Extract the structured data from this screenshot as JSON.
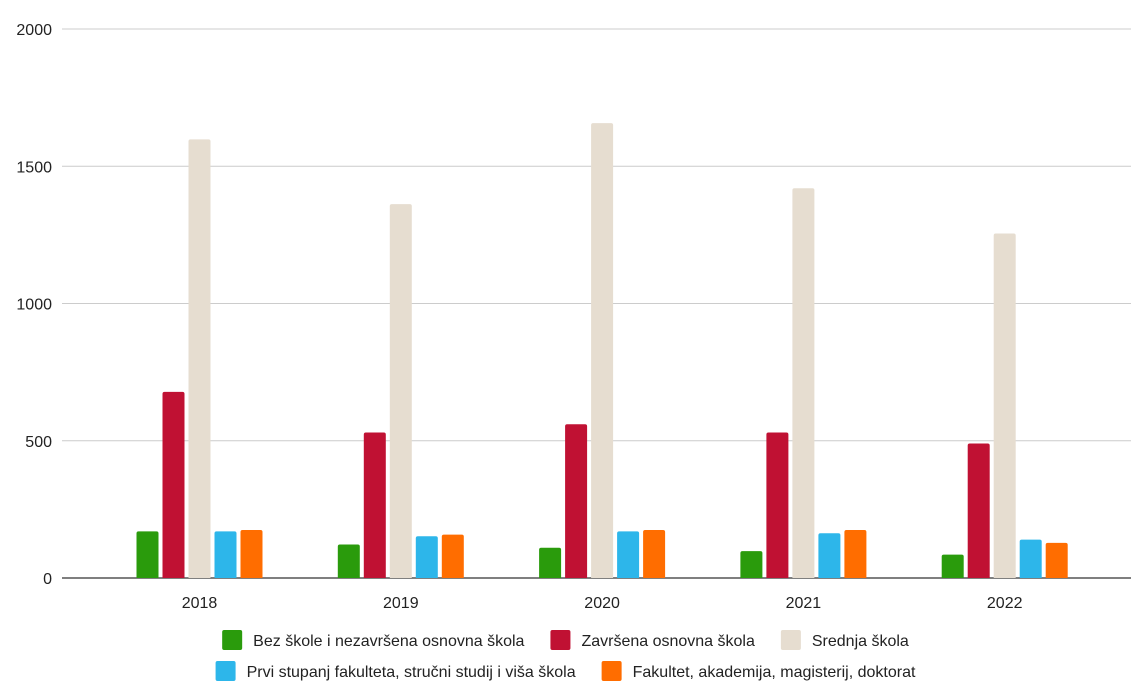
{
  "chart_data": {
    "type": "bar",
    "title": "",
    "xlabel": "",
    "ylabel": "",
    "categories": [
      "2018",
      "2019",
      "2020",
      "2021",
      "2022"
    ],
    "ylim": [
      0,
      2000
    ],
    "yticks": [
      0,
      500,
      1000,
      1500,
      2000
    ],
    "grid": true,
    "legend_position": "bottom",
    "series": [
      {
        "name": "Bez škole i nezavršena osnovna škola",
        "color": "#2a9b0c",
        "values": [
          170,
          122,
          110,
          98,
          85
        ]
      },
      {
        "name": "Završena osnovna škola",
        "color": "#c01133",
        "values": [
          678,
          530,
          560,
          530,
          490
        ]
      },
      {
        "name": "Srednja škola",
        "color": "#e6ddd0",
        "values": [
          1598,
          1362,
          1657,
          1420,
          1255
        ]
      },
      {
        "name": "Prvi stupanj fakulteta, stručni studij i viša škola",
        "color": "#2db6ea",
        "values": [
          170,
          152,
          170,
          163,
          140
        ]
      },
      {
        "name": "Fakultet, akademija, magisterij, doktorat",
        "color": "#ff6d00",
        "values": [
          175,
          158,
          175,
          175,
          128
        ]
      }
    ]
  }
}
